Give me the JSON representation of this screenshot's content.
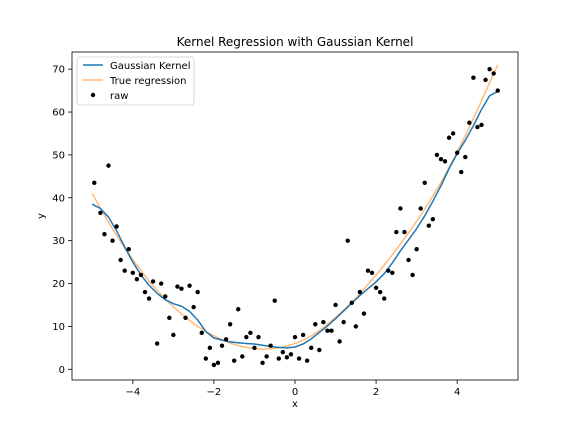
{
  "chart_data": {
    "type": "line",
    "title": "Kernel Regression with Gaussian Kernel",
    "xlabel": "x",
    "ylabel": "y",
    "xlim": [
      -5.5,
      5.5
    ],
    "ylim": [
      -2.5,
      74
    ],
    "x_ticks": [
      -4,
      -2,
      0,
      2,
      4
    ],
    "x_tick_labels": [
      "−4",
      "−2",
      "0",
      "2",
      "4"
    ],
    "y_ticks": [
      0,
      10,
      20,
      30,
      40,
      50,
      60,
      70
    ],
    "y_tick_labels": [
      "0",
      "10",
      "20",
      "30",
      "40",
      "50",
      "60",
      "70"
    ],
    "grid": false,
    "legend_position": "top-left",
    "series": [
      {
        "name": "Gaussian Kernel",
        "kind": "line",
        "color": "#1f77b4",
        "x": [
          -5.0,
          -4.8,
          -4.6,
          -4.4,
          -4.2,
          -4.0,
          -3.8,
          -3.6,
          -3.4,
          -3.2,
          -3.0,
          -2.8,
          -2.6,
          -2.4,
          -2.2,
          -2.0,
          -1.8,
          -1.6,
          -1.4,
          -1.2,
          -1.0,
          -0.8,
          -0.6,
          -0.4,
          -0.2,
          0.0,
          0.2,
          0.4,
          0.6,
          0.8,
          1.0,
          1.2,
          1.4,
          1.6,
          1.8,
          2.0,
          2.2,
          2.4,
          2.6,
          2.8,
          3.0,
          3.2,
          3.4,
          3.6,
          3.8,
          4.0,
          4.2,
          4.4,
          4.6,
          4.8,
          5.0
        ],
        "y": [
          38.5,
          37.5,
          35.5,
          32.3,
          28.5,
          25.0,
          22.0,
          19.6,
          17.7,
          16.2,
          15.3,
          14.7,
          13.5,
          11.5,
          8.8,
          7.3,
          6.8,
          6.4,
          6.2,
          6.0,
          5.9,
          5.6,
          5.3,
          5.1,
          5.0,
          5.2,
          5.9,
          7.1,
          8.6,
          10.1,
          11.8,
          13.6,
          15.4,
          17.2,
          18.8,
          20.4,
          22.3,
          24.8,
          27.6,
          30.2,
          32.8,
          35.8,
          39.2,
          42.8,
          46.8,
          50.3,
          53.4,
          56.8,
          60.6,
          63.8,
          64.8
        ]
      },
      {
        "name": "True regression",
        "kind": "line",
        "color": "#ffbb78",
        "x": [
          -5.0,
          -4.8,
          -4.6,
          -4.4,
          -4.2,
          -4.0,
          -3.8,
          -3.6,
          -3.4,
          -3.2,
          -3.0,
          -2.8,
          -2.6,
          -2.4,
          -2.2,
          -2.0,
          -1.8,
          -1.6,
          -1.4,
          -1.2,
          -1.0,
          -0.8,
          -0.6,
          -0.4,
          -0.2,
          0.0,
          0.2,
          0.4,
          0.6,
          0.8,
          1.0,
          1.2,
          1.4,
          1.6,
          1.8,
          2.0,
          2.2,
          2.4,
          2.6,
          2.8,
          3.0,
          3.2,
          3.4,
          3.6,
          3.8,
          4.0,
          4.2,
          4.4,
          4.6,
          4.8,
          5.0
        ],
        "y": [
          41.0,
          37.6,
          34.3,
          31.2,
          28.3,
          25.6,
          23.0,
          20.6,
          18.4,
          16.4,
          14.6,
          12.9,
          11.4,
          10.0,
          8.8,
          7.8,
          6.9,
          6.1,
          5.5,
          5.1,
          4.8,
          4.7,
          4.8,
          5.0,
          5.4,
          6.0,
          6.8,
          7.8,
          9.0,
          10.5,
          12.1,
          13.8,
          15.6,
          17.6,
          19.8,
          22.0,
          24.3,
          26.7,
          29.2,
          31.8,
          34.5,
          37.4,
          40.4,
          43.6,
          47.0,
          50.7,
          54.5,
          58.5,
          62.6,
          66.8,
          71.0
        ]
      },
      {
        "name": "raw",
        "kind": "scatter",
        "color": "#000000",
        "x": [
          -4.95,
          -4.8,
          -4.7,
          -4.6,
          -4.5,
          -4.4,
          -4.3,
          -4.2,
          -4.1,
          -4.0,
          -3.9,
          -3.8,
          -3.7,
          -3.6,
          -3.5,
          -3.4,
          -3.3,
          -3.2,
          -3.1,
          -3.0,
          -2.9,
          -2.8,
          -2.7,
          -2.6,
          -2.5,
          -2.4,
          -2.3,
          -2.2,
          -2.1,
          -2.0,
          -1.9,
          -1.8,
          -1.7,
          -1.6,
          -1.5,
          -1.4,
          -1.3,
          -1.2,
          -1.1,
          -1.0,
          -0.9,
          -0.8,
          -0.7,
          -0.6,
          -0.5,
          -0.4,
          -0.3,
          -0.2,
          -0.1,
          0.0,
          0.1,
          0.2,
          0.3,
          0.4,
          0.5,
          0.6,
          0.7,
          0.8,
          0.9,
          1.0,
          1.1,
          1.2,
          1.3,
          1.4,
          1.5,
          1.6,
          1.7,
          1.8,
          1.9,
          2.0,
          2.1,
          2.2,
          2.3,
          2.4,
          2.5,
          2.6,
          2.7,
          2.8,
          2.9,
          3.0,
          3.1,
          3.2,
          3.3,
          3.4,
          3.5,
          3.6,
          3.7,
          3.8,
          3.9,
          4.0,
          4.1,
          4.2,
          4.3,
          4.4,
          4.5,
          4.6,
          4.7,
          4.8,
          4.9,
          5.0
        ],
        "y": [
          43.5,
          36.5,
          31.5,
          47.5,
          30.0,
          33.3,
          25.5,
          23.0,
          28.0,
          22.5,
          21.0,
          22.0,
          18.0,
          16.5,
          20.5,
          6.0,
          20.0,
          17.0,
          12.0,
          8.0,
          19.3,
          18.8,
          12.0,
          19.5,
          14.5,
          18.0,
          8.5,
          2.5,
          5.0,
          1.0,
          1.5,
          5.5,
          7.0,
          10.5,
          2.0,
          14.0,
          3.0,
          7.5,
          8.5,
          5.0,
          7.5,
          1.5,
          3.0,
          5.5,
          16.0,
          2.5,
          4.0,
          2.8,
          3.5,
          7.5,
          2.5,
          8.0,
          2.0,
          5.0,
          10.5,
          4.5,
          11.0,
          9.0,
          9.0,
          15.0,
          6.5,
          11.0,
          30.0,
          15.5,
          10.0,
          18.0,
          13.0,
          23.0,
          22.5,
          19.0,
          18.0,
          16.5,
          23.0,
          22.5,
          32.0,
          37.5,
          32.0,
          25.5,
          22.0,
          28.0,
          37.5,
          43.5,
          33.5,
          35.0,
          50.0,
          49.0,
          48.5,
          54.0,
          55.0,
          50.5,
          46.0,
          49.5,
          57.5,
          68.0,
          56.5,
          57.0,
          67.5,
          70.0,
          69.0,
          65.0
        ]
      }
    ]
  }
}
